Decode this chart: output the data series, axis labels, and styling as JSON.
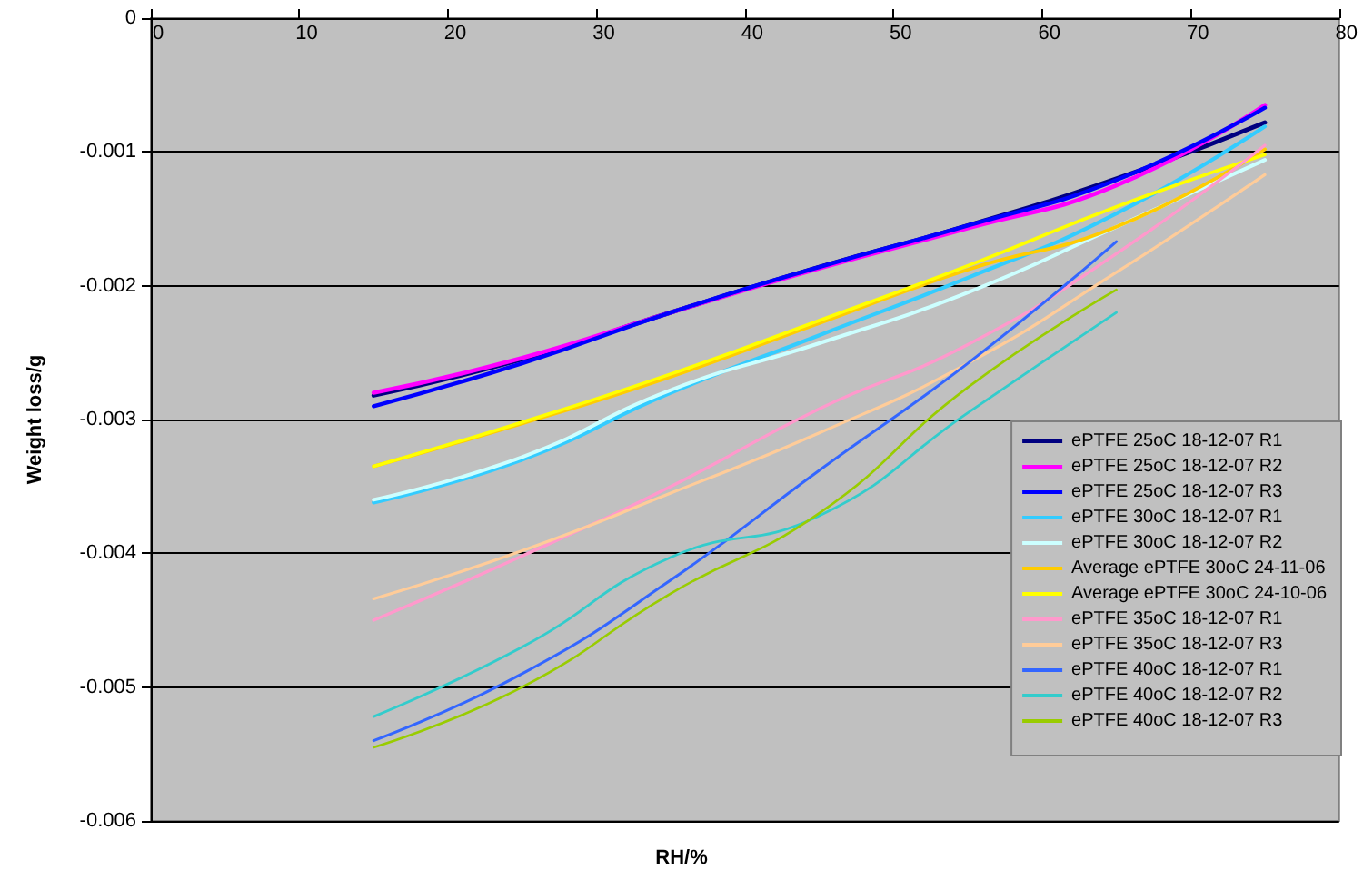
{
  "chart_data": {
    "type": "line",
    "xlabel": "RH/%",
    "ylabel": "Weight loss/g",
    "xlim": [
      0,
      80
    ],
    "xticks": [
      0,
      10,
      20,
      30,
      40,
      50,
      60,
      70,
      80
    ],
    "ylim": [
      -0.006,
      0
    ],
    "yticks": [
      -0.006,
      -0.005,
      -0.004,
      -0.003,
      -0.002,
      -0.001,
      0
    ],
    "grid": "y",
    "legend": "right",
    "marker": "none",
    "line_style": "solid",
    "x": [
      15,
      25,
      35,
      45,
      55,
      65,
      75
    ],
    "series": [
      {
        "name": "ePTFE 25oC 18-12-07 R1",
        "color": "#000080",
        "values": [
          -0.00282,
          -0.00255,
          -0.0022,
          -0.00186,
          -0.00155,
          -0.0012,
          -0.00078
        ]
      },
      {
        "name": "ePTFE 25oC 18-12-07 R2",
        "color": "#ff00ff",
        "values": [
          -0.0028,
          -0.00254,
          -0.0022,
          -0.00187,
          -0.00157,
          -0.00125,
          -0.00065
        ]
      },
      {
        "name": "ePTFE 25oC 18-12-07 R3",
        "color": "#0000ff",
        "values": [
          -0.0029,
          -0.00258,
          -0.0022,
          -0.00186,
          -0.00155,
          -0.00121,
          -0.00067
        ]
      },
      {
        "name": "ePTFE 30oC 18-12-07 R1",
        "color": "#33ccff",
        "values": [
          -0.00362,
          -0.0033,
          -0.0028,
          -0.00237,
          -0.00194,
          -0.00146,
          -0.00081
        ]
      },
      {
        "name": "ePTFE 30oC 18-12-07 R2",
        "color": "#ccffff",
        "values": [
          -0.0036,
          -0.00328,
          -0.00278,
          -0.00243,
          -0.00205,
          -0.00156,
          -0.00106
        ]
      },
      {
        "name": "Average ePTFE 30oC 24-11-06",
        "color": "#ffcc00",
        "values": [
          -0.00335,
          -0.00303,
          -0.00268,
          -0.00228,
          -0.00188,
          -0.00156,
          -0.00098
        ]
      },
      {
        "name": "Average ePTFE 30oC 24-10-06",
        "color": "#ffff00",
        "values": [
          -0.00335,
          -0.00302,
          -0.00266,
          -0.00226,
          -0.00185,
          -0.00141,
          -0.00102
        ]
      },
      {
        "name": "ePTFE 35oC 18-12-07 R1",
        "color": "#ff99cc",
        "values": [
          -0.0045,
          -0.00402,
          -0.0035,
          -0.00292,
          -0.00244,
          -0.00176,
          -0.00095
        ]
      },
      {
        "name": "ePTFE 35oC 18-12-07 R3",
        "color": "#ffcc99",
        "values": [
          -0.00434,
          -0.00398,
          -0.00355,
          -0.0031,
          -0.00258,
          -0.0019,
          -0.00117
        ]
      },
      {
        "name": "ePTFE 40oC 18-12-07 R1",
        "color": "#3366ff",
        "values": [
          -0.0054,
          -0.0049,
          -0.0042,
          -0.00338,
          -0.00258,
          -0.00167,
          null
        ]
      },
      {
        "name": "ePTFE 40oC 18-12-07 R2",
        "color": "#33cccc",
        "values": [
          -0.00522,
          -0.0047,
          -0.00403,
          -0.00372,
          -0.00295,
          -0.0022,
          null
        ]
      },
      {
        "name": "ePTFE 40oC 18-12-07 R3",
        "color": "#99cc00",
        "values": [
          -0.00545,
          -0.005,
          -0.0043,
          -0.0037,
          -0.00276,
          -0.00203,
          null
        ]
      }
    ]
  }
}
